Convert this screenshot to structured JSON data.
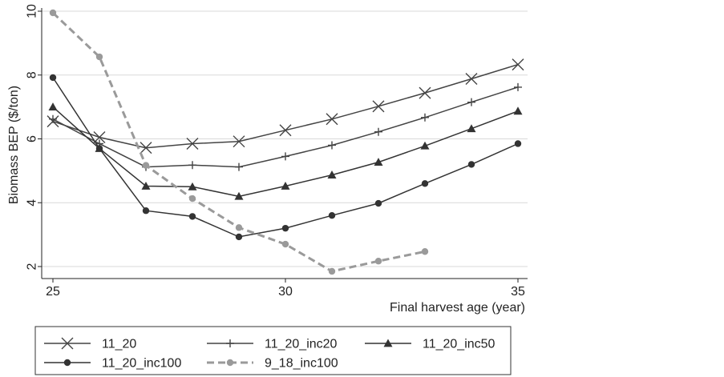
{
  "chart_data": {
    "type": "line",
    "xlabel": "Final harvest age (year)",
    "ylabel": "Biomass BEP ($/ton)",
    "xlim": [
      25,
      35
    ],
    "ylim": [
      2,
      10
    ],
    "xticks": [
      25,
      30,
      35
    ],
    "yticks": [
      2,
      4,
      6,
      8,
      10
    ],
    "grid": "horizontal",
    "legend_position": "bottom",
    "series": [
      {
        "name": "11_20",
        "marker": "x",
        "color": "#444444",
        "x": [
          25,
          26,
          27,
          28,
          29,
          30,
          31,
          32,
          33,
          34,
          35
        ],
        "values": [
          6.55,
          6.05,
          5.72,
          5.85,
          5.92,
          6.27,
          6.62,
          7.02,
          7.44,
          7.88,
          8.33
        ]
      },
      {
        "name": "11_20_inc20",
        "marker": "plus",
        "color": "#444444",
        "x": [
          25,
          26,
          27,
          28,
          29,
          30,
          31,
          32,
          33,
          34,
          35
        ],
        "values": [
          6.62,
          5.85,
          5.12,
          5.18,
          5.12,
          5.45,
          5.8,
          6.22,
          6.67,
          7.15,
          7.62
        ]
      },
      {
        "name": "11_20_inc50",
        "marker": "triangle",
        "color": "#333333",
        "x": [
          25,
          26,
          27,
          28,
          29,
          30,
          31,
          32,
          33,
          34,
          35
        ],
        "values": [
          7.0,
          5.7,
          4.52,
          4.5,
          4.2,
          4.52,
          4.87,
          5.27,
          5.78,
          6.32,
          6.87
        ]
      },
      {
        "name": "11_20_inc100",
        "marker": "circle",
        "color": "#333333",
        "x": [
          25,
          26,
          27,
          28,
          29,
          30,
          31,
          32,
          33,
          34,
          35
        ],
        "values": [
          7.92,
          5.7,
          3.75,
          3.57,
          2.93,
          3.2,
          3.6,
          3.98,
          4.6,
          5.2,
          5.85
        ]
      },
      {
        "name": "9_18_inc100",
        "marker": "circle",
        "color": "#9a9a9a",
        "dashed": true,
        "x": [
          25,
          26,
          27,
          28,
          29,
          30,
          31,
          32,
          33
        ],
        "values": [
          9.95,
          8.57,
          5.17,
          4.13,
          3.22,
          2.7,
          1.85,
          2.17,
          2.47
        ]
      }
    ]
  }
}
